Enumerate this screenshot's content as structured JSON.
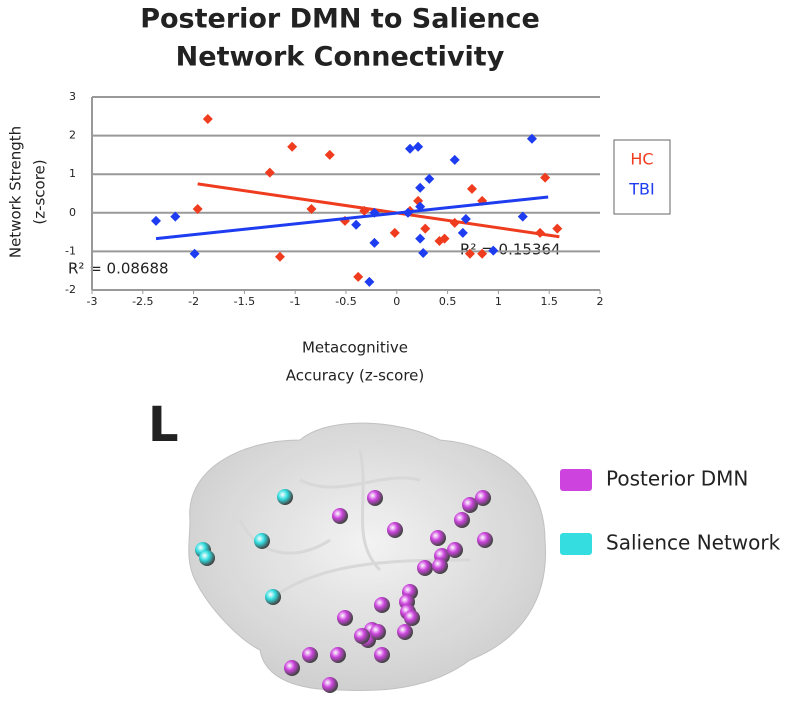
{
  "chart_data": {
    "type": "scatter",
    "title": [
      "Posterior DMN to Salience",
      "Network Connectivity"
    ],
    "x_label": [
      "Metacognitive",
      "Accuracy (z-score)"
    ],
    "y_label": [
      "Network Strength",
      "(z-score)"
    ],
    "xlim": [
      -3,
      2
    ],
    "xticks": [
      -3,
      -2.5,
      -2,
      -1.5,
      -1,
      -0.5,
      0,
      0.5,
      1,
      1.5,
      2
    ],
    "ylim": [
      -2,
      3
    ],
    "yticks": [
      -2,
      -1,
      0,
      1,
      2,
      3
    ],
    "grid": true,
    "series": [
      {
        "name": "HC",
        "color": "#f03c1e",
        "x": [
          -1.86,
          -1.03,
          -0.66,
          -1.25,
          -1.96,
          -0.84,
          -0.51,
          -0.32,
          -0.02,
          -1.15,
          -0.38,
          0.13,
          0.21,
          0.28,
          0.42,
          0.47,
          0.57,
          0.74,
          0.84,
          0.72,
          0.84,
          1.46,
          1.41,
          1.58
        ],
        "values": [
          2.43,
          1.71,
          1.5,
          1.04,
          0.1,
          0.1,
          -0.21,
          0.05,
          -0.52,
          -1.14,
          -1.66,
          0.05,
          0.31,
          -0.41,
          -0.73,
          -0.67,
          -0.26,
          0.62,
          0.31,
          -1.06,
          -1.06,
          0.91,
          -0.52,
          -0.41
        ],
        "trend_x": [
          -1.96,
          1.6
        ],
        "trend_y": [
          0.75,
          -0.62
        ]
      },
      {
        "name": "TBI",
        "color": "#1e3cf0",
        "x": [
          -2.37,
          -2.18,
          -1.99,
          -0.4,
          -0.22,
          -0.27,
          -0.22,
          0.13,
          0.21,
          0.23,
          0.23,
          0.32,
          0.23,
          0.26,
          0.11,
          0.57,
          0.68,
          0.65,
          0.95,
          1.24,
          1.33
        ],
        "values": [
          -0.21,
          -0.1,
          -1.06,
          -0.31,
          -0.78,
          -1.79,
          0,
          1.66,
          1.71,
          0.65,
          0.16,
          0.88,
          -0.67,
          -1.04,
          0,
          1.37,
          -0.16,
          -0.52,
          -0.98,
          -0.1,
          1.92
        ],
        "trend_x": [
          -2.37,
          1.49
        ],
        "trend_y": [
          -0.67,
          0.41
        ]
      }
    ],
    "annotations": [
      "R² = 0.08688",
      "R² = 0.15364"
    ]
  },
  "brain": {
    "orientation_label": "L",
    "legend": [
      {
        "name": "Posterior DMN",
        "color": "#cc44dd"
      },
      {
        "name": "Salience Network",
        "color": "#33dde0"
      }
    ]
  }
}
